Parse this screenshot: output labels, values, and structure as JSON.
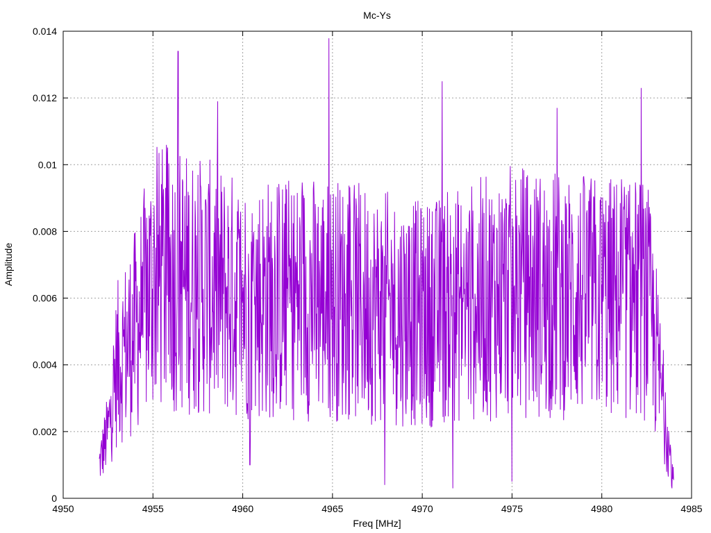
{
  "chart_data": {
    "type": "line",
    "title": "Mc-Ys",
    "xlabel": "Freq [MHz]",
    "ylabel": "Amplitude",
    "xlim": [
      4950,
      4985
    ],
    "ylim": [
      0,
      0.014
    ],
    "x_ticks": [
      "4950",
      "4955",
      "4960",
      "4965",
      "4970",
      "4975",
      "4980",
      "4985"
    ],
    "y_ticks": [
      "0",
      "0.002",
      "0.004",
      "0.006",
      "0.008",
      "0.01",
      "0.012",
      "0.014"
    ],
    "grid": true,
    "legend": "none",
    "series": [
      {
        "color": "#9400d3",
        "x_start": 4952.0,
        "x_end": 4984.0,
        "envelope": [
          {
            "x": 4952.0,
            "y": 0.001
          },
          {
            "x": 4952.5,
            "y": 0.002
          },
          {
            "x": 4953.0,
            "y": 0.004
          },
          {
            "x": 4953.5,
            "y": 0.0045
          },
          {
            "x": 4954.0,
            "y": 0.005
          },
          {
            "x": 4955.0,
            "y": 0.0065
          },
          {
            "x": 4956.0,
            "y": 0.0066
          },
          {
            "x": 4960.0,
            "y": 0.006
          },
          {
            "x": 4965.0,
            "y": 0.006
          },
          {
            "x": 4970.0,
            "y": 0.0055
          },
          {
            "x": 4975.0,
            "y": 0.0062
          },
          {
            "x": 4980.0,
            "y": 0.006
          },
          {
            "x": 4982.5,
            "y": 0.006
          },
          {
            "x": 4983.0,
            "y": 0.0045
          },
          {
            "x": 4983.5,
            "y": 0.0025
          },
          {
            "x": 4984.0,
            "y": 0.0005
          }
        ],
        "peaks": [
          {
            "x": 4956.4,
            "y": 0.0134
          },
          {
            "x": 4958.6,
            "y": 0.0119
          },
          {
            "x": 4964.8,
            "y": 0.0138
          },
          {
            "x": 4971.1,
            "y": 0.0125
          },
          {
            "x": 4977.5,
            "y": 0.0117
          },
          {
            "x": 4982.2,
            "y": 0.0123
          }
        ],
        "troughs": [
          {
            "x": 4960.4,
            "y": 0.001
          },
          {
            "x": 4967.9,
            "y": 0.0004
          },
          {
            "x": 4971.7,
            "y": 0.0003
          },
          {
            "x": 4975.0,
            "y": 0.0005
          },
          {
            "x": 4983.9,
            "y": 0.0003
          }
        ]
      }
    ]
  }
}
